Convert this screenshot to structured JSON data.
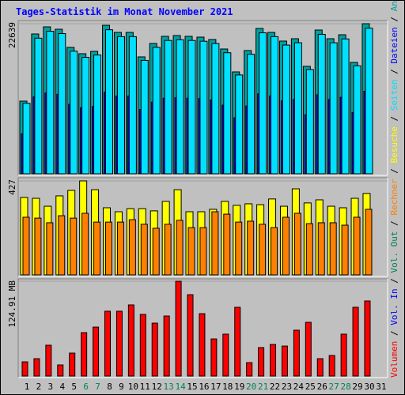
{
  "chart_data": [
    {
      "type": "bar",
      "title": "Tages-Statistik im Monat November 2021",
      "series": [
        {
          "name": "Anfragen",
          "color": "#00a0a0",
          "values": [
            10962,
            21090,
            22163,
            21805,
            19064,
            18111,
            18469,
            22400,
            21328,
            21328,
            17635,
            19660,
            20733,
            20852,
            20733,
            20614,
            20256,
            18826,
            15371,
            18588,
            21924,
            21328,
            20018,
            20375,
            16205,
            21686,
            20375,
            20971,
            16800,
            22639,
            null
          ]
        },
        {
          "name": "Dateien",
          "color": "#0000ff",
          "values": [
            6029,
            11600,
            12190,
            11993,
            10485,
            9961,
            10158,
            12320,
            11730,
            11730,
            9699,
            10813,
            11403,
            11469,
            11403,
            11338,
            11141,
            10354,
            8454,
            10223,
            12058,
            11730,
            11010,
            11206,
            8913,
            11927,
            11206,
            11534,
            9240,
            12451,
            null
          ]
        },
        {
          "name": "Seiten",
          "color": "#00e0ff",
          "values": [
            10633,
            20457,
            21498,
            21151,
            18492,
            17568,
            17915,
            21728,
            20688,
            20688,
            17106,
            19070,
            20111,
            20226,
            20111,
            19996,
            19648,
            18261,
            14910,
            18030,
            21266,
            20688,
            19417,
            19764,
            15719,
            21035,
            19764,
            20342,
            16296,
            21960,
            null
          ]
        }
      ],
      "ylim": [
        0,
        22639
      ],
      "yticks": [
        22639
      ]
    },
    {
      "type": "bar",
      "series": [
        {
          "name": "Besuche",
          "color": "#ffff00",
          "values": [
            352,
            348,
            312,
            359,
            384,
            427,
            387,
            305,
            287,
            301,
            301,
            291,
            334,
            387,
            287,
            287,
            298,
            334,
            316,
            323,
            319,
            345,
            312,
            391,
            327,
            341,
            312,
            305,
            348,
            370,
            null
          ]
        },
        {
          "name": "Rechner",
          "color": "#ff8000",
          "values": [
            262,
            258,
            237,
            269,
            258,
            280,
            240,
            240,
            240,
            251,
            230,
            212,
            230,
            248,
            215,
            215,
            287,
            276,
            240,
            244,
            230,
            215,
            262,
            280,
            233,
            237,
            237,
            226,
            262,
            298,
            null
          ]
        }
      ],
      "ylim": [
        0,
        427
      ],
      "yticks": [
        427
      ]
    },
    {
      "type": "bar",
      "categories": [
        "1",
        "2",
        "3",
        "4",
        "5",
        "6",
        "7",
        "8",
        "9",
        "10",
        "11",
        "12",
        "13",
        "14",
        "15",
        "16",
        "17",
        "18",
        "19",
        "20",
        "21",
        "22",
        "23",
        "24",
        "25",
        "26",
        "27",
        "28",
        "29",
        "30",
        "31"
      ],
      "category_colors": [
        "#000000",
        "#000000",
        "#000000",
        "#000000",
        "#000000",
        "#00805c",
        "#00805c",
        "#000000",
        "#000000",
        "#000000",
        "#000000",
        "#000000",
        "#00805c",
        "#00805c",
        "#000000",
        "#000000",
        "#000000",
        "#000000",
        "#000000",
        "#00805c",
        "#00805c",
        "#000000",
        "#000000",
        "#000000",
        "#000000",
        "#000000",
        "#00805c",
        "#00805c",
        "#000000",
        "#000000",
        "#000000"
      ],
      "series": [
        {
          "name": "Volumen",
          "color": "#ff0000",
          "values": [
            18.7,
            22.9,
            40.6,
            14.6,
            30.2,
            57.2,
            64.5,
            85.4,
            85.4,
            93.7,
            81.2,
            69.7,
            79.1,
            124.91,
            107.2,
            82.2,
            48.9,
            55.2,
            90.6,
            17.7,
            37.5,
            41.6,
            39.5,
            60.4,
            70.8,
            22.9,
            27.1,
            55.2,
            90.6,
            98.9,
            null
          ]
        },
        {
          "name": "Vol. In",
          "color": "#0000ff",
          "values": [
            null,
            null,
            null,
            null,
            null,
            null,
            null,
            null,
            null,
            null,
            null,
            null,
            null,
            null,
            null,
            null,
            null,
            null,
            null,
            null,
            null,
            null,
            null,
            null,
            null,
            null,
            null,
            null,
            null,
            null,
            null
          ]
        },
        {
          "name": "Vol. Out",
          "color": "#00805c",
          "values": [
            null,
            null,
            null,
            null,
            null,
            null,
            null,
            null,
            null,
            null,
            null,
            null,
            null,
            null,
            null,
            null,
            null,
            null,
            null,
            null,
            null,
            null,
            null,
            null,
            null,
            null,
            null,
            null,
            null,
            null,
            null
          ]
        }
      ],
      "ylim": [
        0,
        124.91
      ],
      "yticks": [
        {
          "value": 124.91,
          "label": "124.91 MB"
        }
      ]
    }
  ]
}
